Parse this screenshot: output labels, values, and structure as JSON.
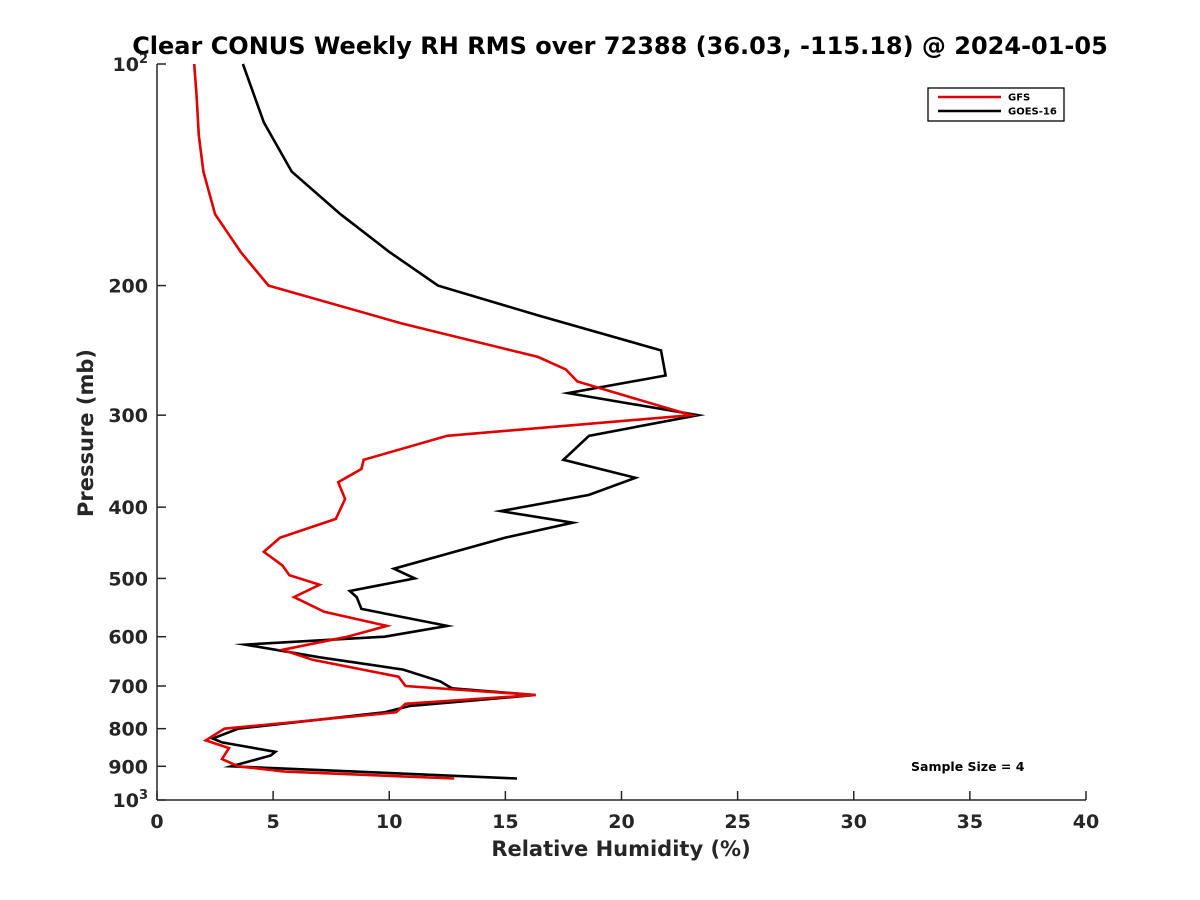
{
  "chart_data": {
    "type": "line",
    "title": "Clear CONUS Weekly RH RMS over 72388 (36.03, -115.18) @ 2024-01-05",
    "xlabel": "Relative Humidity (%)",
    "ylabel": "Pressure (mb)",
    "xlim": [
      0,
      40
    ],
    "ylim": [
      100,
      1000
    ],
    "y_scale": "log",
    "y_reversed": true,
    "x_ticks": [
      "0",
      "5",
      "10",
      "15",
      "20",
      "25",
      "30",
      "35",
      "40"
    ],
    "y_ticks": [
      {
        "value": 100,
        "label": "10",
        "sup": "2"
      },
      {
        "value": 200,
        "label": "200"
      },
      {
        "value": 300,
        "label": "300"
      },
      {
        "value": 400,
        "label": "400"
      },
      {
        "value": 500,
        "label": "500"
      },
      {
        "value": 600,
        "label": "600"
      },
      {
        "value": 700,
        "label": "700"
      },
      {
        "value": 800,
        "label": "800"
      },
      {
        "value": 900,
        "label": "900"
      },
      {
        "value": 1000,
        "label": "10",
        "sup": "3"
      }
    ],
    "grid": false,
    "legend_position": "top-right",
    "annotation": "Sample Size = 4",
    "series": [
      {
        "name": "GFS",
        "color": "#e00000",
        "points": [
          [
            1.6,
            100
          ],
          [
            1.7,
            110
          ],
          [
            1.8,
            125
          ],
          [
            2.0,
            140
          ],
          [
            2.5,
            160
          ],
          [
            3.6,
            180
          ],
          [
            4.8,
            200
          ],
          [
            10.5,
            225
          ],
          [
            16.4,
            250
          ],
          [
            17.6,
            260
          ],
          [
            18.1,
            270
          ],
          [
            23.0,
            300
          ],
          [
            12.5,
            320
          ],
          [
            8.9,
            345
          ],
          [
            8.8,
            355
          ],
          [
            7.8,
            370
          ],
          [
            8.1,
            390
          ],
          [
            7.7,
            415
          ],
          [
            5.3,
            440
          ],
          [
            4.6,
            460
          ],
          [
            5.4,
            480
          ],
          [
            5.7,
            495
          ],
          [
            7.0,
            510
          ],
          [
            5.9,
            530
          ],
          [
            7.2,
            555
          ],
          [
            9.9,
            580
          ],
          [
            8.2,
            600
          ],
          [
            5.4,
            625
          ],
          [
            6.7,
            645
          ],
          [
            10.4,
            680
          ],
          [
            10.7,
            700
          ],
          [
            16.3,
            720
          ],
          [
            10.7,
            740
          ],
          [
            10.3,
            760
          ],
          [
            2.9,
            800
          ],
          [
            2.1,
            830
          ],
          [
            3.1,
            850
          ],
          [
            2.8,
            880
          ],
          [
            3.5,
            900
          ],
          [
            5.5,
            915
          ],
          [
            12.8,
            935
          ]
        ]
      },
      {
        "name": "GOES-16",
        "color": "#000000",
        "points": [
          [
            3.7,
            100
          ],
          [
            4.6,
            120
          ],
          [
            5.8,
            140
          ],
          [
            7.9,
            160
          ],
          [
            10.0,
            180
          ],
          [
            12.1,
            200
          ],
          [
            16.5,
            220
          ],
          [
            21.7,
            245
          ],
          [
            21.9,
            265
          ],
          [
            17.7,
            280
          ],
          [
            23.3,
            300
          ],
          [
            18.6,
            320
          ],
          [
            17.5,
            345
          ],
          [
            20.6,
            365
          ],
          [
            18.6,
            385
          ],
          [
            14.8,
            405
          ],
          [
            17.9,
            420
          ],
          [
            15.0,
            440
          ],
          [
            10.2,
            485
          ],
          [
            11.1,
            500
          ],
          [
            8.3,
            520
          ],
          [
            8.6,
            530
          ],
          [
            8.8,
            550
          ],
          [
            12.5,
            580
          ],
          [
            9.8,
            600
          ],
          [
            3.8,
            615
          ],
          [
            7.0,
            640
          ],
          [
            10.6,
            665
          ],
          [
            12.2,
            690
          ],
          [
            12.7,
            705
          ],
          [
            16.3,
            720
          ],
          [
            10.9,
            745
          ],
          [
            9.8,
            760
          ],
          [
            3.5,
            800
          ],
          [
            2.4,
            825
          ],
          [
            2.8,
            835
          ],
          [
            5.1,
            860
          ],
          [
            4.9,
            870
          ],
          [
            3.2,
            900
          ],
          [
            15.5,
            935
          ]
        ]
      }
    ]
  }
}
